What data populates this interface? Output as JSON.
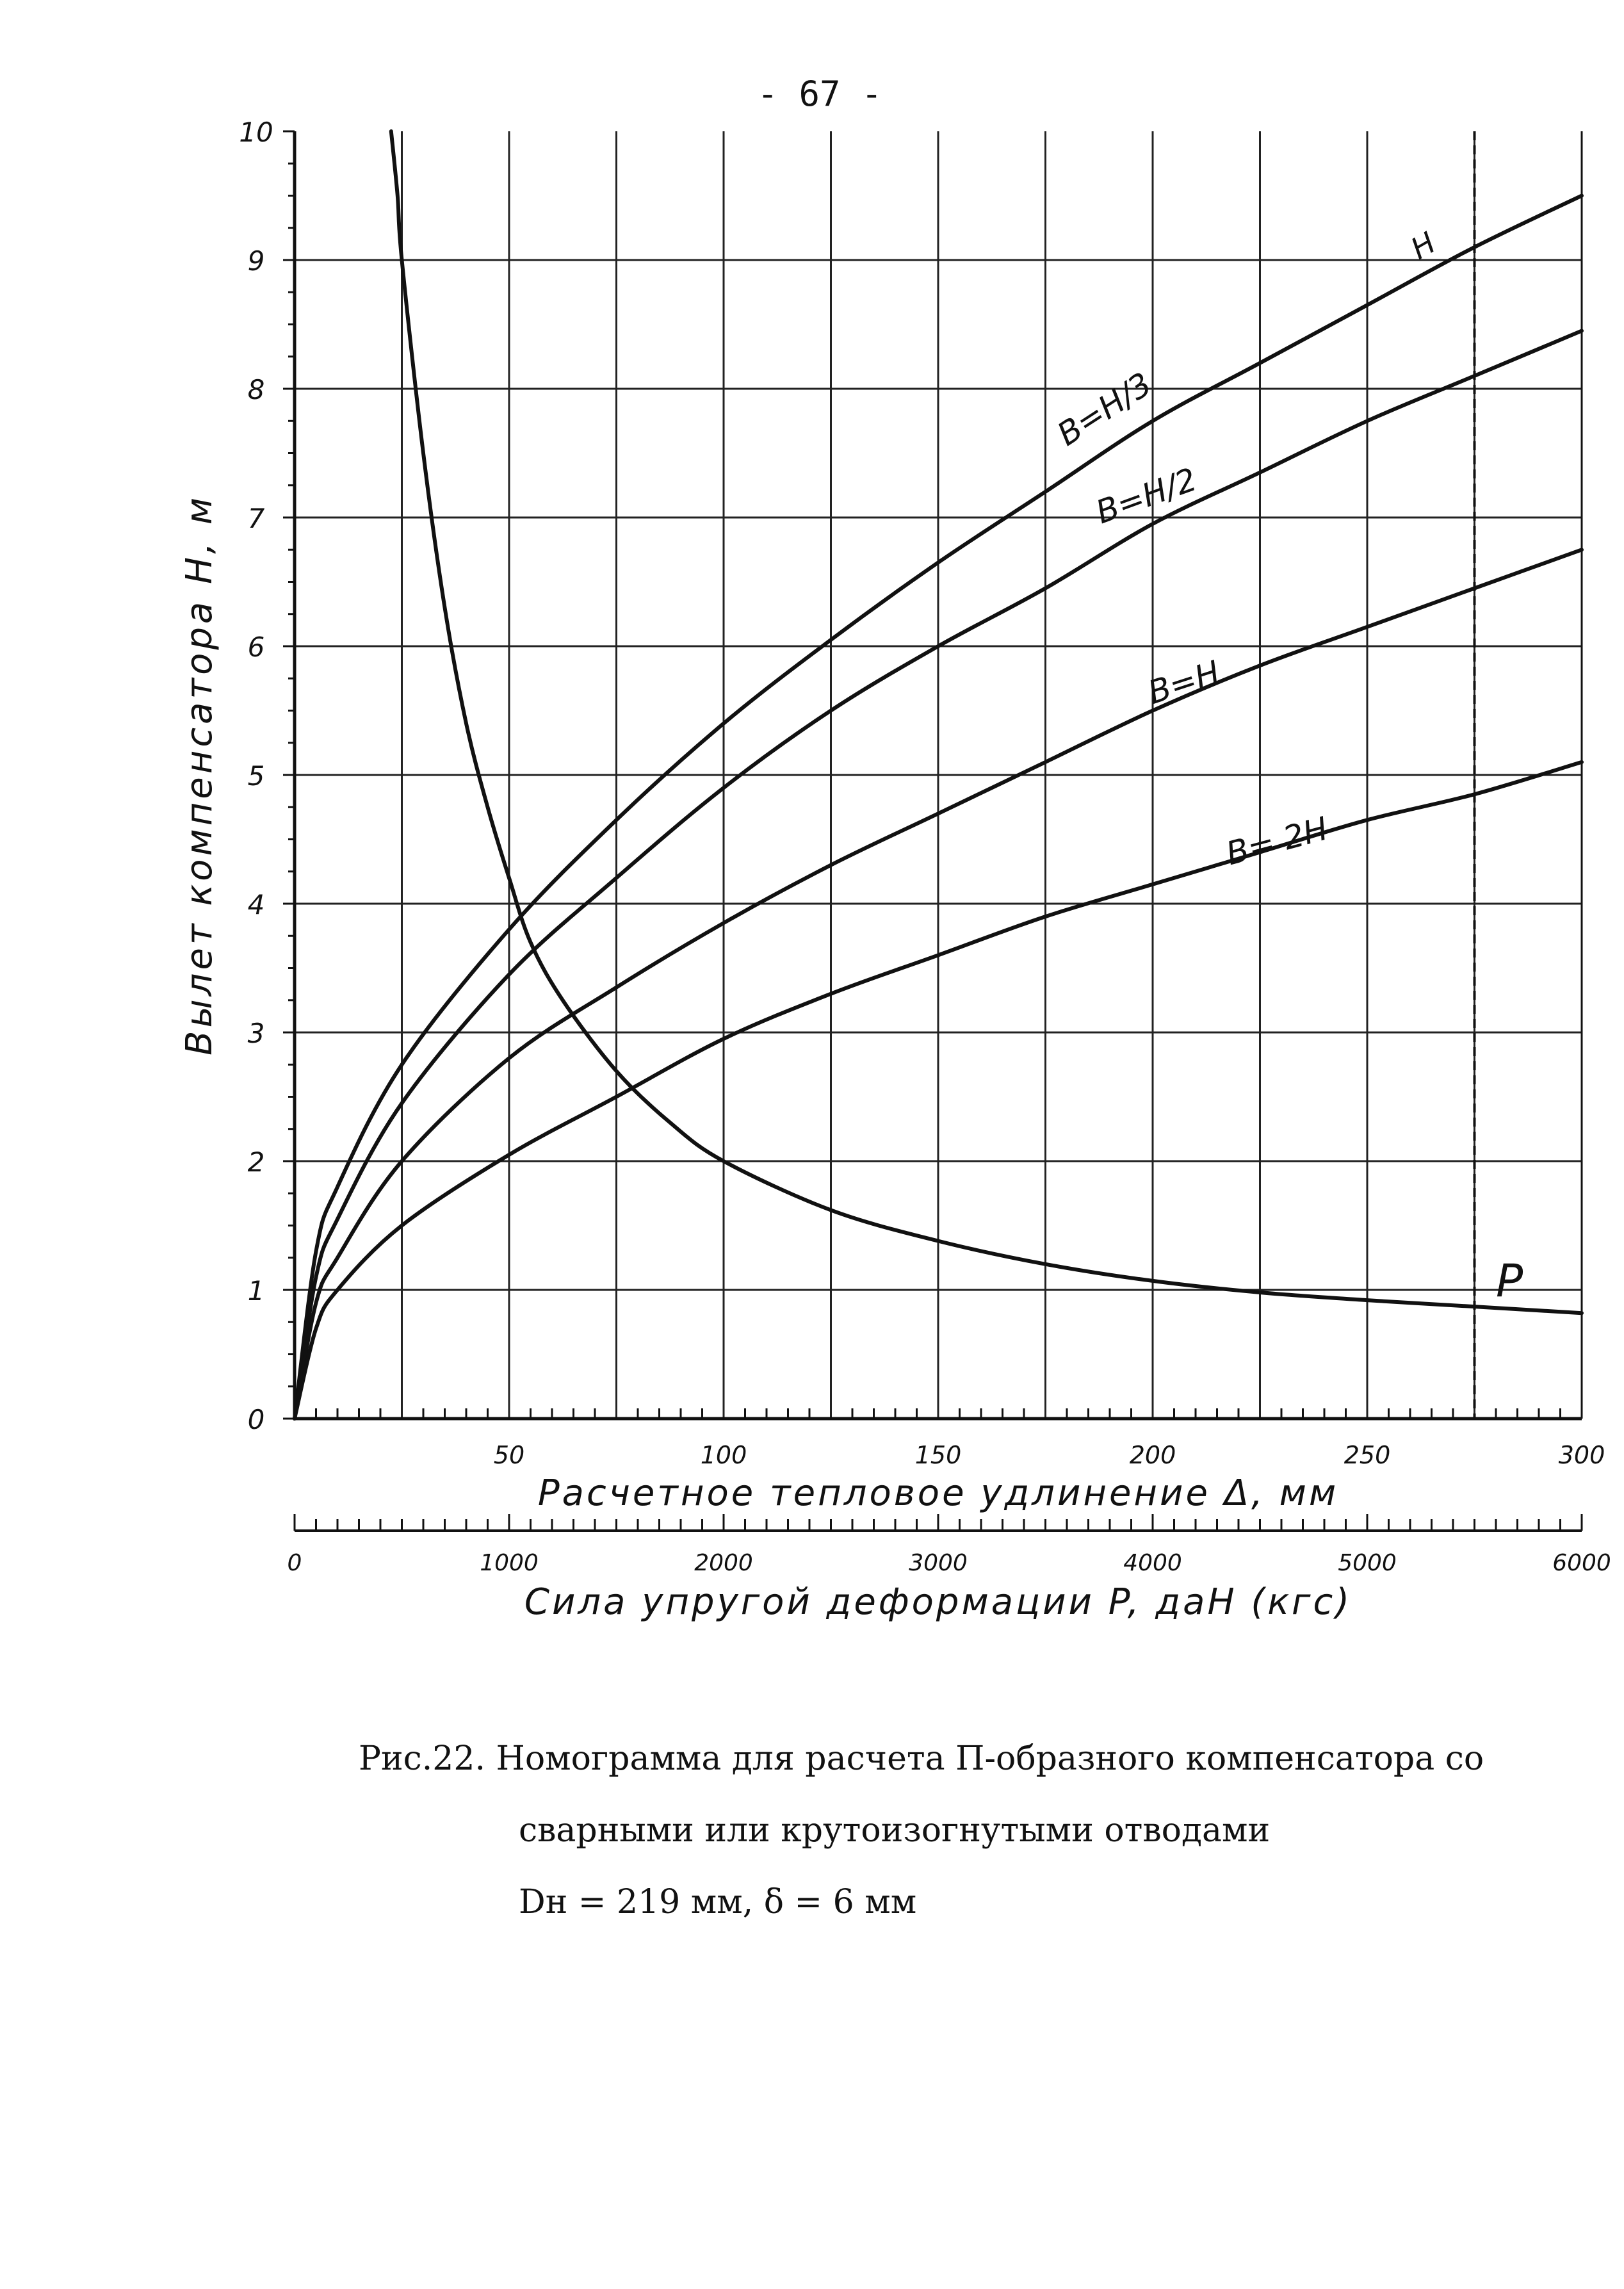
{
  "page_number": "- 67 -",
  "caption": {
    "line1": "Рис.22. Номограмма для расчета П-образного компенсатора со",
    "line2": "сварными или крутоизогнутыми отводами",
    "line3": "Dн  = 219 мм,  δ = 6 мм"
  },
  "chart_data": {
    "type": "line",
    "ylabel": "Вылет компенсатора  H, м",
    "xlabel": "Расчетное тепловое удлинение   Δ,  мм",
    "x2label": "Сила упругой деформации  P, даН (кгс)",
    "xlim": [
      0,
      300
    ],
    "ylim": [
      0,
      10
    ],
    "x2lim": [
      0,
      6000
    ],
    "x_ticks": [
      50,
      100,
      150,
      200,
      250,
      300
    ],
    "x2_ticks": [
      0,
      1000,
      2000,
      3000,
      4000,
      5000,
      6000
    ],
    "y_ticks": [
      0,
      1,
      2,
      3,
      4,
      5,
      6,
      7,
      8,
      9,
      10
    ],
    "grid": true,
    "series": [
      {
        "name": "B=H/3",
        "label": "B=H/3",
        "end_label": "H",
        "axis": "delta",
        "color": "#111111",
        "x": [
          0,
          5,
          10,
          25,
          50,
          75,
          100,
          125,
          150,
          175,
          200,
          225,
          250,
          275,
          300
        ],
        "y": [
          0,
          1.3,
          1.8,
          2.75,
          3.8,
          4.65,
          5.4,
          6.05,
          6.65,
          7.2,
          7.75,
          8.2,
          8.65,
          9.1,
          9.5
        ]
      },
      {
        "name": "B=H/2",
        "label": "B=H/2",
        "axis": "delta",
        "color": "#111111",
        "x": [
          0,
          5,
          10,
          25,
          50,
          75,
          100,
          125,
          150,
          175,
          200,
          225,
          250,
          275,
          300
        ],
        "y": [
          0,
          1.1,
          1.55,
          2.45,
          3.45,
          4.2,
          4.9,
          5.5,
          6.0,
          6.45,
          6.95,
          7.35,
          7.75,
          8.1,
          8.45
        ]
      },
      {
        "name": "B=H",
        "label": "B=H",
        "axis": "delta",
        "color": "#111111",
        "x": [
          0,
          5,
          10,
          25,
          50,
          75,
          100,
          125,
          150,
          175,
          200,
          225,
          250,
          275,
          300
        ],
        "y": [
          0,
          0.9,
          1.25,
          2.0,
          2.8,
          3.35,
          3.85,
          4.3,
          4.7,
          5.1,
          5.5,
          5.85,
          6.15,
          6.45,
          6.75
        ]
      },
      {
        "name": "B=2H",
        "label": "B= 2H",
        "axis": "delta",
        "color": "#111111",
        "x": [
          0,
          5,
          10,
          25,
          50,
          75,
          100,
          125,
          150,
          175,
          200,
          225,
          250,
          275,
          300
        ],
        "y": [
          0,
          0.7,
          1.0,
          1.5,
          2.05,
          2.5,
          2.95,
          3.3,
          3.6,
          3.9,
          4.15,
          4.4,
          4.65,
          4.85,
          5.1
        ]
      },
      {
        "name": "P",
        "label": "P",
        "axis": "force",
        "color": "#111111",
        "x": [
          450,
          480,
          500,
          600,
          700,
          800,
          900,
          1000,
          1100,
          1250,
          1500,
          1750,
          2000,
          2500,
          3000,
          3500,
          4000,
          4500,
          5000,
          5500,
          6000
        ],
        "y": [
          10,
          9.5,
          9.0,
          7.5,
          6.3,
          5.4,
          4.75,
          4.2,
          3.7,
          3.25,
          2.7,
          2.3,
          2.0,
          1.62,
          1.38,
          1.2,
          1.07,
          0.98,
          0.92,
          0.87,
          0.82
        ]
      }
    ],
    "reference_line": {
      "x": 275,
      "style": "dashed"
    }
  }
}
